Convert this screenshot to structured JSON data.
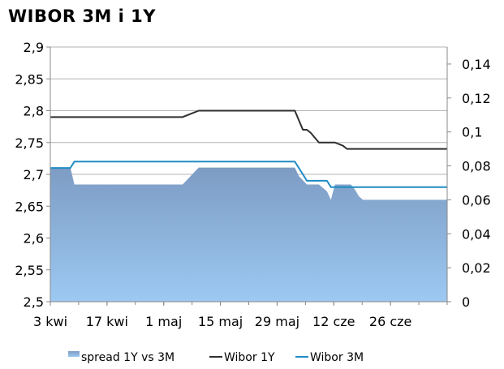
{
  "title": "WIBOR 3M i 1Y",
  "chart_data": {
    "type": "area+line",
    "title": "WIBOR 3M i 1Y",
    "categories": [
      "3 kwi",
      "17 kwi",
      "1 maj",
      "15 maj",
      "29 maj",
      "12 cze",
      "26 cze"
    ],
    "y_left": {
      "min": 2.5,
      "max": 2.9,
      "step": 0.05,
      "tick_labels": [
        "2,5",
        "2,55",
        "2,6",
        "2,65",
        "2,7",
        "2,75",
        "2,8",
        "2,85",
        "2,9"
      ]
    },
    "y_right": {
      "min": 0,
      "max": 0.15,
      "step": 0.02,
      "tick_labels": [
        "0",
        "0,02",
        "0,04",
        "0,06",
        "0,08",
        "0,1",
        "0,12",
        "0,14"
      ]
    },
    "x_range": [
      0,
      99
    ],
    "grid": "horizontal",
    "legend_position": "bottom",
    "series": [
      {
        "name": "spread 1Y vs 3M",
        "kind": "area",
        "axis": "right",
        "color": "#7d9cc4",
        "color_bottom": "#9cc9f2",
        "x": [
          0,
          5,
          6,
          33,
          35,
          37,
          39,
          61,
          62,
          64,
          67,
          69,
          70,
          71,
          72,
          73,
          74,
          75,
          76,
          77,
          78,
          80,
          99
        ],
        "values": [
          0.079,
          0.079,
          0.069,
          0.069,
          0.074,
          0.079,
          0.079,
          0.079,
          0.074,
          0.069,
          0.069,
          0.065,
          0.06,
          0.069,
          0.069,
          0.069,
          0.069,
          0.069,
          0.066,
          0.062,
          0.06,
          0.06,
          0.06
        ]
      },
      {
        "name": "Wibor 1Y",
        "kind": "line",
        "axis": "left",
        "color": "#2f2f2f",
        "x": [
          0,
          33,
          35,
          37,
          39,
          61,
          62,
          63,
          64,
          65,
          67,
          69,
          71,
          73,
          74,
          76,
          78,
          80,
          99
        ],
        "values": [
          2.79,
          2.79,
          2.795,
          2.8,
          2.8,
          2.8,
          2.785,
          2.77,
          2.77,
          2.765,
          2.75,
          2.75,
          2.75,
          2.745,
          2.74,
          2.74,
          2.74,
          2.74,
          2.74
        ]
      },
      {
        "name": "Wibor 3M",
        "kind": "line",
        "axis": "left",
        "color": "#1f8cc4",
        "x": [
          0,
          5,
          6,
          61,
          62,
          63,
          64,
          67,
          69,
          70,
          71,
          72,
          74,
          99
        ],
        "values": [
          2.71,
          2.71,
          2.72,
          2.72,
          2.71,
          2.7,
          2.69,
          2.69,
          2.69,
          2.68,
          2.68,
          2.68,
          2.68,
          2.68
        ]
      }
    ]
  }
}
